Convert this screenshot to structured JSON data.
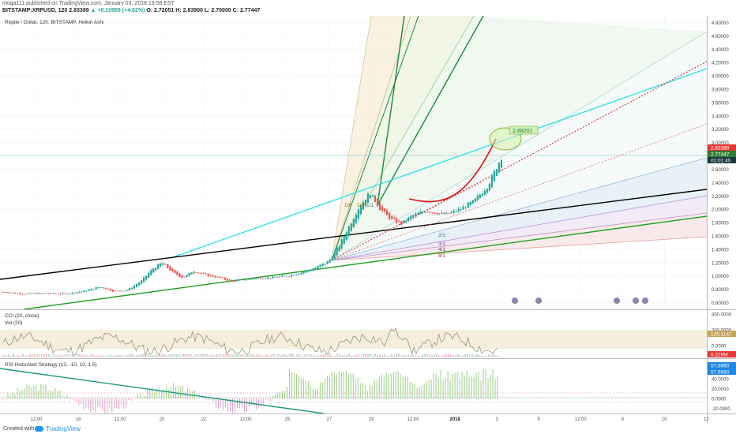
{
  "header": {
    "line1": "moga111 published on TradingView.com, January 03, 2018 19:58 EST",
    "symbol": "BITSTAMP:XRPUSD, 120",
    "last": "2.83389",
    "change": "▲ +0.10959 (+4.02%)",
    "ohlc": "O: 2.72051 H: 2.83900 L: 2.70000 C: 2.77447"
  },
  "pane_titles": {
    "main": "Ripple / Dollar, 120, BITSTAMP, Heikin Ashi",
    "cci": "CCI (20, close)",
    "vol": "Vol (20)",
    "rsi": "RSI HistoAlert Strategy (13, -10, 10, 1.5)"
  },
  "annotations": {
    "target": "2.88201",
    "fan_labels": [
      "1/8",
      "1/4",
      "1/1",
      "2/1",
      "3/1",
      "4/1",
      "8/1"
    ]
  },
  "price_badges": {
    "current": "2.83389",
    "close": "2.77447",
    "countdown": "01:01:40"
  },
  "cci_badges": {
    "value": "125.1147",
    "vol": "8.228M"
  },
  "rsi_badges": {
    "value1": "57.6860",
    "value2": "57.6860"
  },
  "footer": {
    "created": "Created with",
    "brand": "TradingView"
  },
  "colors": {
    "up": "#26a69a",
    "down": "#ef5350",
    "cyan_line": "#33e0ee",
    "black_line": "#000000",
    "green_line": "#20a020",
    "red_arc": "#e01010",
    "badge_red": "#e53935",
    "badge_green": "#2e7d32",
    "badge_dark": "#1b3a3a"
  },
  "chart_data": [
    {
      "type": "candlestick",
      "title": "Ripple / Dollar, 120, BITSTAMP, Heikin Ashi",
      "y_ticks": [
        "4.80000",
        "4.60000",
        "4.40000",
        "4.20000",
        "4.00000",
        "3.80000",
        "3.60000",
        "3.40000",
        "3.20000",
        "3.00000",
        "2.80000",
        "2.60000",
        "2.40000",
        "2.20000",
        "2.00000",
        "1.80000",
        "1.60000",
        "1.40000",
        "1.20000",
        "1.00000",
        "0.80000",
        "0.60000"
      ],
      "ylim": [
        0.5,
        4.9
      ],
      "x_ticks": [
        "12:00",
        "18",
        "12:00",
        "20",
        "22",
        "12:00",
        "25",
        "27",
        "29",
        "12:00",
        "2018",
        "3",
        "5",
        "12:00",
        "8",
        "10",
        "12"
      ],
      "close_path": [
        {
          "t": 0,
          "v": 0.76
        },
        {
          "t": 0.03,
          "v": 0.73
        },
        {
          "t": 0.06,
          "v": 0.74
        },
        {
          "t": 0.09,
          "v": 0.73
        },
        {
          "t": 0.12,
          "v": 0.78
        },
        {
          "t": 0.14,
          "v": 0.84
        },
        {
          "t": 0.16,
          "v": 0.77
        },
        {
          "t": 0.18,
          "v": 0.79
        },
        {
          "t": 0.2,
          "v": 0.93
        },
        {
          "t": 0.215,
          "v": 1.1
        },
        {
          "t": 0.23,
          "v": 1.2
        },
        {
          "t": 0.245,
          "v": 1.05
        },
        {
          "t": 0.26,
          "v": 0.97
        },
        {
          "t": 0.275,
          "v": 1.08
        },
        {
          "t": 0.29,
          "v": 1.02
        },
        {
          "t": 0.31,
          "v": 0.98
        },
        {
          "t": 0.33,
          "v": 0.92
        },
        {
          "t": 0.36,
          "v": 0.96
        },
        {
          "t": 0.39,
          "v": 0.98
        },
        {
          "t": 0.41,
          "v": 1.0
        },
        {
          "t": 0.43,
          "v": 1.05
        },
        {
          "t": 0.45,
          "v": 1.12
        },
        {
          "t": 0.47,
          "v": 1.22
        },
        {
          "t": 0.485,
          "v": 1.45
        },
        {
          "t": 0.5,
          "v": 1.75
        },
        {
          "t": 0.515,
          "v": 2.05
        },
        {
          "t": 0.53,
          "v": 2.25
        },
        {
          "t": 0.545,
          "v": 2.0
        },
        {
          "t": 0.56,
          "v": 1.85
        },
        {
          "t": 0.575,
          "v": 1.78
        },
        {
          "t": 0.59,
          "v": 1.9
        },
        {
          "t": 0.61,
          "v": 1.98
        },
        {
          "t": 0.625,
          "v": 1.95
        },
        {
          "t": 0.64,
          "v": 1.92
        },
        {
          "t": 0.66,
          "v": 2.0
        },
        {
          "t": 0.68,
          "v": 2.12
        },
        {
          "t": 0.7,
          "v": 2.35
        },
        {
          "t": 0.72,
          "v": 2.78
        }
      ]
    },
    {
      "type": "line",
      "title": "CCI (20, close)",
      "ylim": [
        -150,
        450
      ],
      "y_ticks": [
        "400.0000",
        "200.0000",
        "0.0000"
      ],
      "value": 125.1147
    },
    {
      "type": "bar",
      "title": "RSI HistoAlert Strategy (13, -10, 10, 1.5)",
      "ylim": [
        -30,
        80
      ],
      "y_ticks": [
        "40.0000",
        "20.0000",
        "0.0000",
        "-20.0000"
      ],
      "value": 57.686
    }
  ]
}
